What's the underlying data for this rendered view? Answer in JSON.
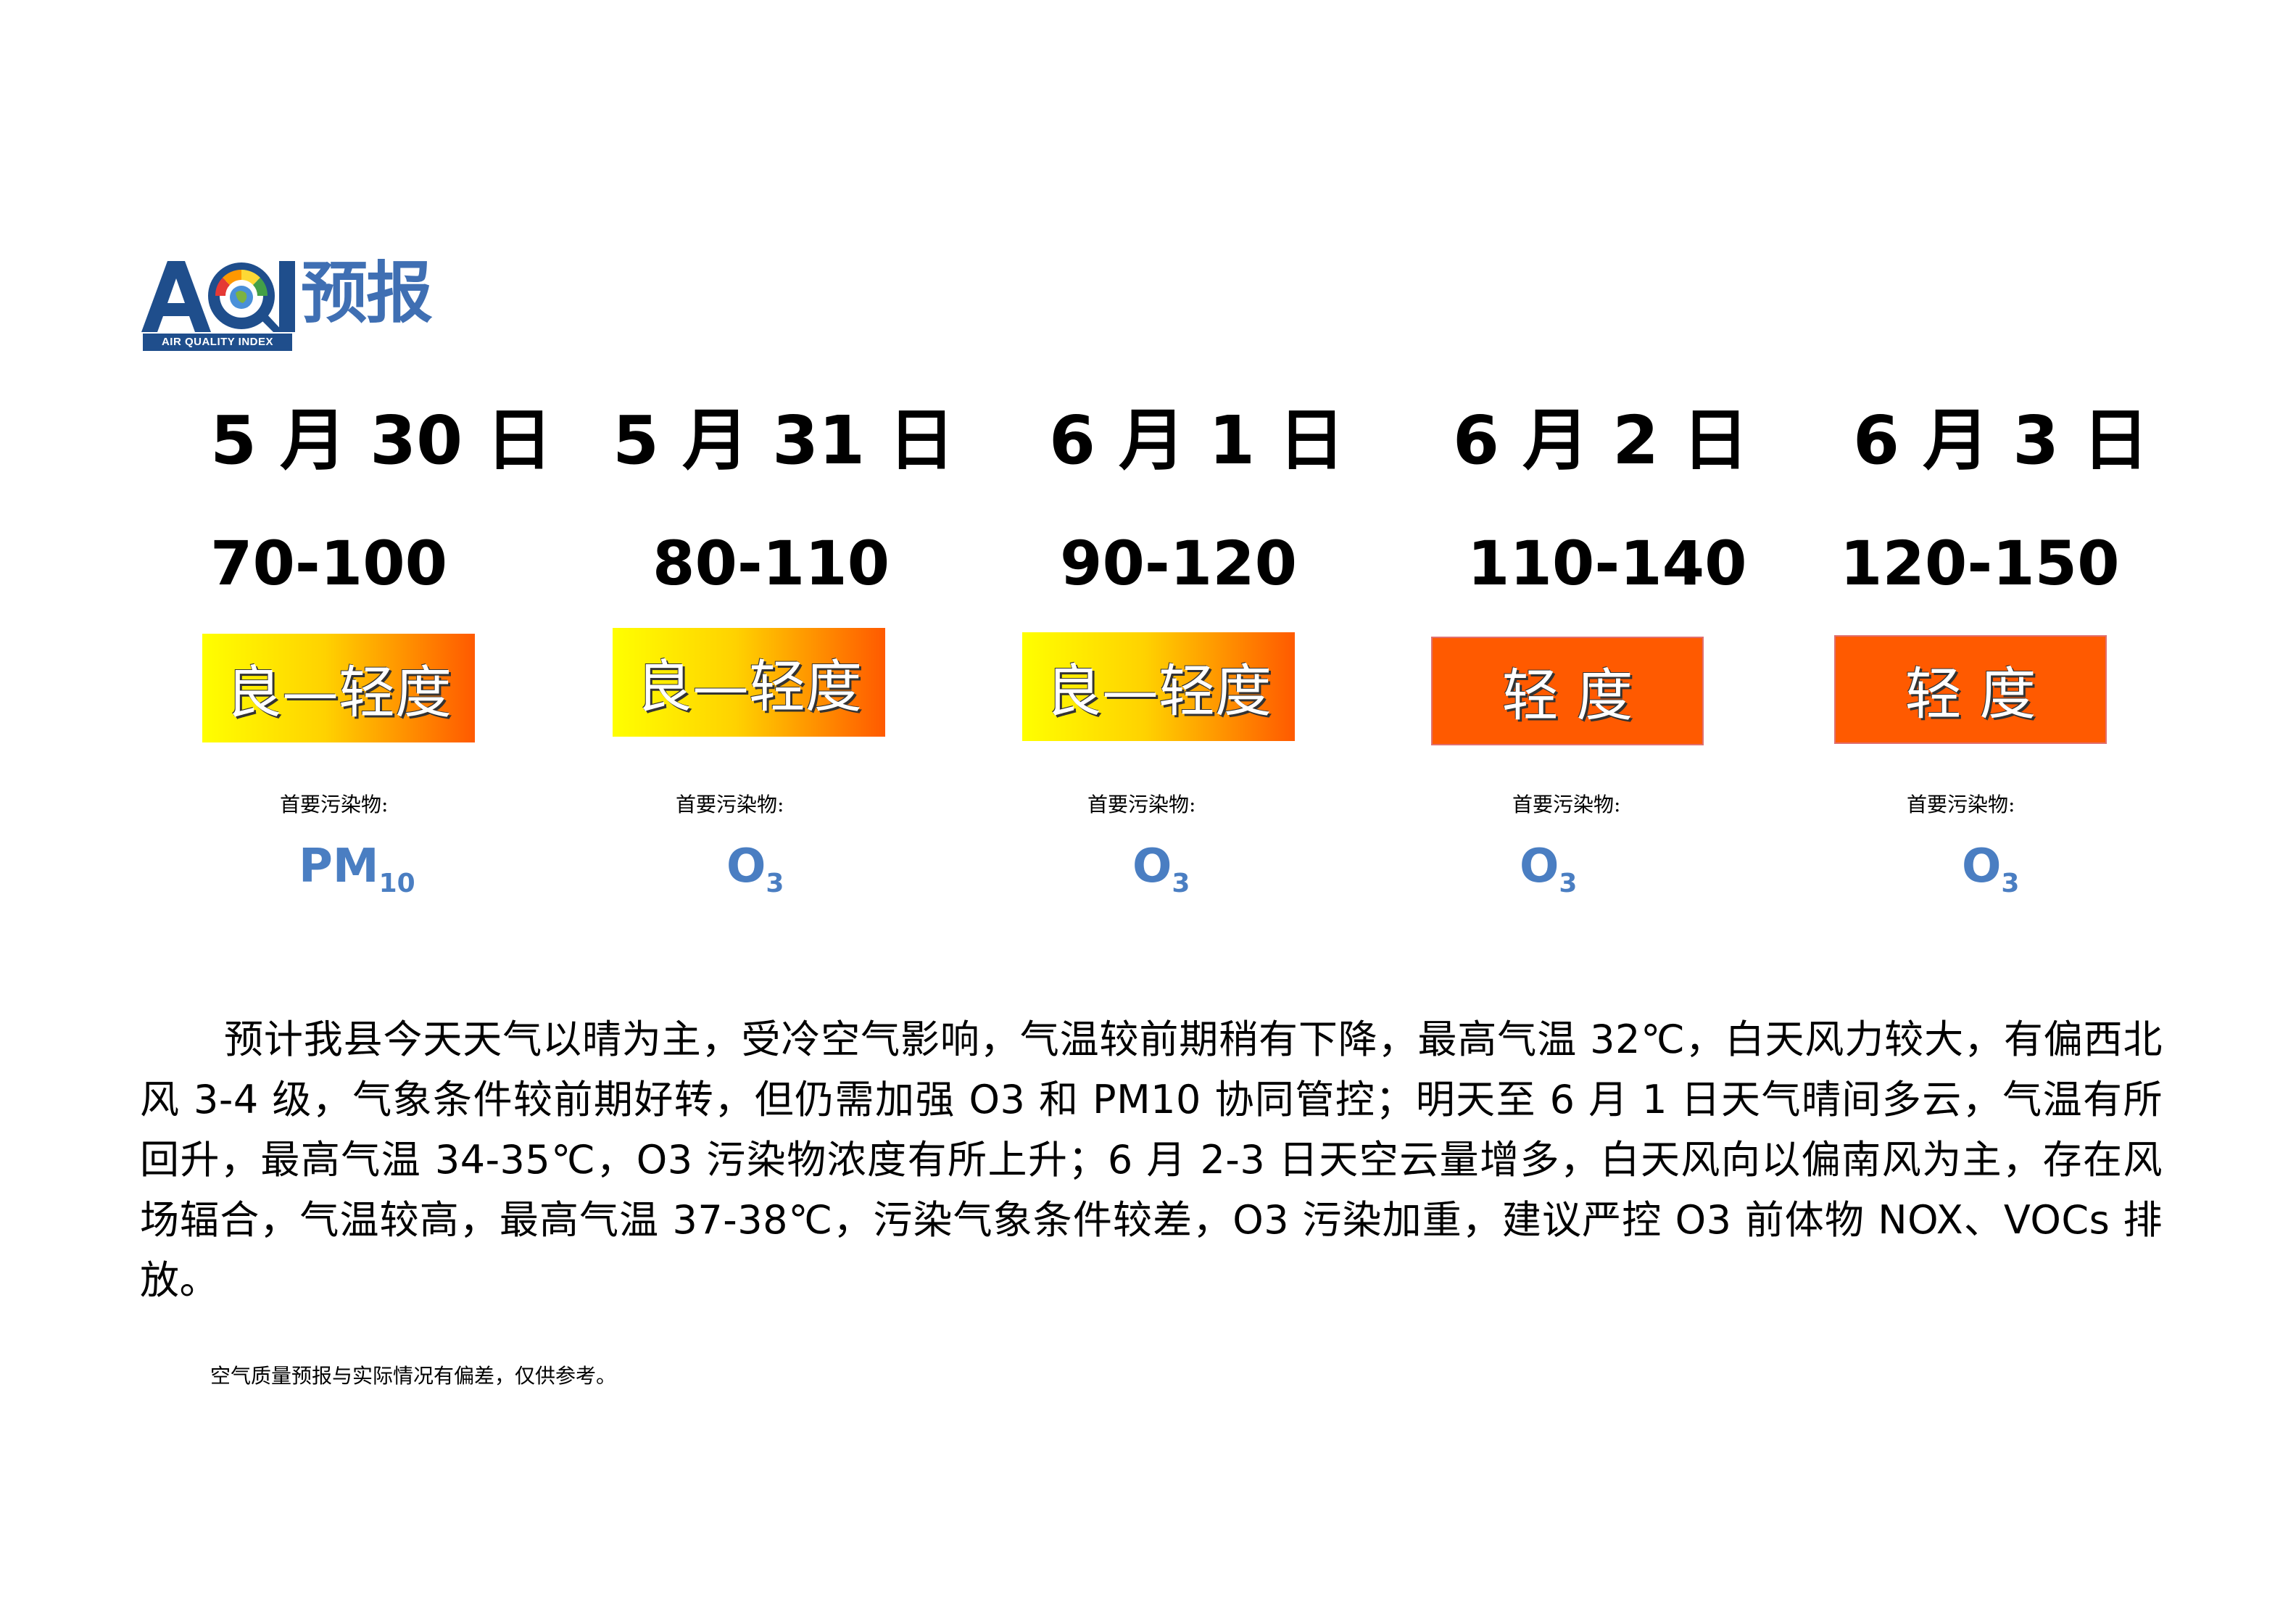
{
  "logo": {
    "letters": "AQI",
    "word": "预报",
    "subtitle": "AIR QUALITY INDEX"
  },
  "forecast": [
    {
      "date": "5 月 30 日",
      "range": "70-100",
      "level": "良—轻度",
      "pollutant_label": "首要污染物:",
      "pollutant": "PM",
      "pollutant_sub": "10"
    },
    {
      "date": "5 月 31 日",
      "range": "80-110",
      "level": "良—轻度",
      "pollutant_label": "首要污染物:",
      "pollutant": "O",
      "pollutant_sub": "3"
    },
    {
      "date": "6 月 1 日",
      "range": "90-120",
      "level": "良—轻度",
      "pollutant_label": "首要污染物:",
      "pollutant": "O",
      "pollutant_sub": "3"
    },
    {
      "date": "6 月 2 日",
      "range": "110-140",
      "level": "轻 度",
      "pollutant_label": "首要污染物:",
      "pollutant": "O",
      "pollutant_sub": "3"
    },
    {
      "date": "6 月 3 日",
      "range": "120-150",
      "level": "轻 度",
      "pollutant_label": "首要污染物:",
      "pollutant": "O",
      "pollutant_sub": "3"
    }
  ],
  "colors": {
    "level_gradient": [
      "#ffff00",
      "#ff5a00"
    ],
    "level_solid": "#ff5a00",
    "pollutant_text": "#4a7ec2",
    "logo_blue": "#1f4e8c"
  },
  "description": "预计我县今天天气以晴为主，受冷空气影响，气温较前期稍有下降，最高气温 32℃，白天风力较大，有偏西北风 3-4 级，气象条件较前期好转，但仍需加强 O3 和 PM10 协同管控；明天至 6 月 1 日天气晴间多云，气温有所回升，最高气温 34-35℃，O3 污染物浓度有所上升；6 月 2-3 日天空云量增多，白天风向以偏南风为主，存在风场辐合，气温较高，最高气温 37-38℃，污染气象条件较差，O3 污染加重，建议严控 O3 前体物 NOX、VOCs 排放。",
  "disclaimer": "空气质量预报与实际情况有偏差，仅供参考。"
}
